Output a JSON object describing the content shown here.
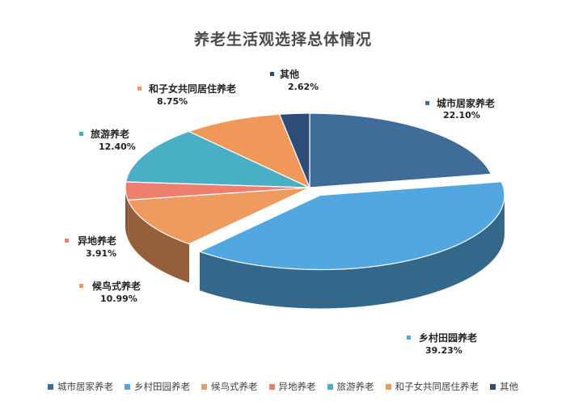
{
  "chart_data": {
    "type": "pie",
    "title": "养老生活观选择总体情况",
    "legend_position": "bottom",
    "slices": [
      {
        "label": "城市居家养老",
        "value": 22.1,
        "display": "22.10%",
        "color": "#3f6c98"
      },
      {
        "label": "乡村田园养老",
        "value": 39.23,
        "display": "39.23%",
        "color": "#52a7e0"
      },
      {
        "label": "候鸟式养老",
        "value": 10.99,
        "display": "10.99%",
        "color": "#ef9a5e"
      },
      {
        "label": "异地养老",
        "value": 3.91,
        "display": "3.91%",
        "color": "#ee7f6e"
      },
      {
        "label": "旅游养老",
        "value": 12.4,
        "display": "12.40%",
        "color": "#49afc5"
      },
      {
        "label": "和子女共同居住养老",
        "value": 8.75,
        "display": "8.75%",
        "color": "#f2975a"
      },
      {
        "label": "其他",
        "value": 2.62,
        "display": "2.62%",
        "color": "#2f4d79"
      }
    ]
  }
}
